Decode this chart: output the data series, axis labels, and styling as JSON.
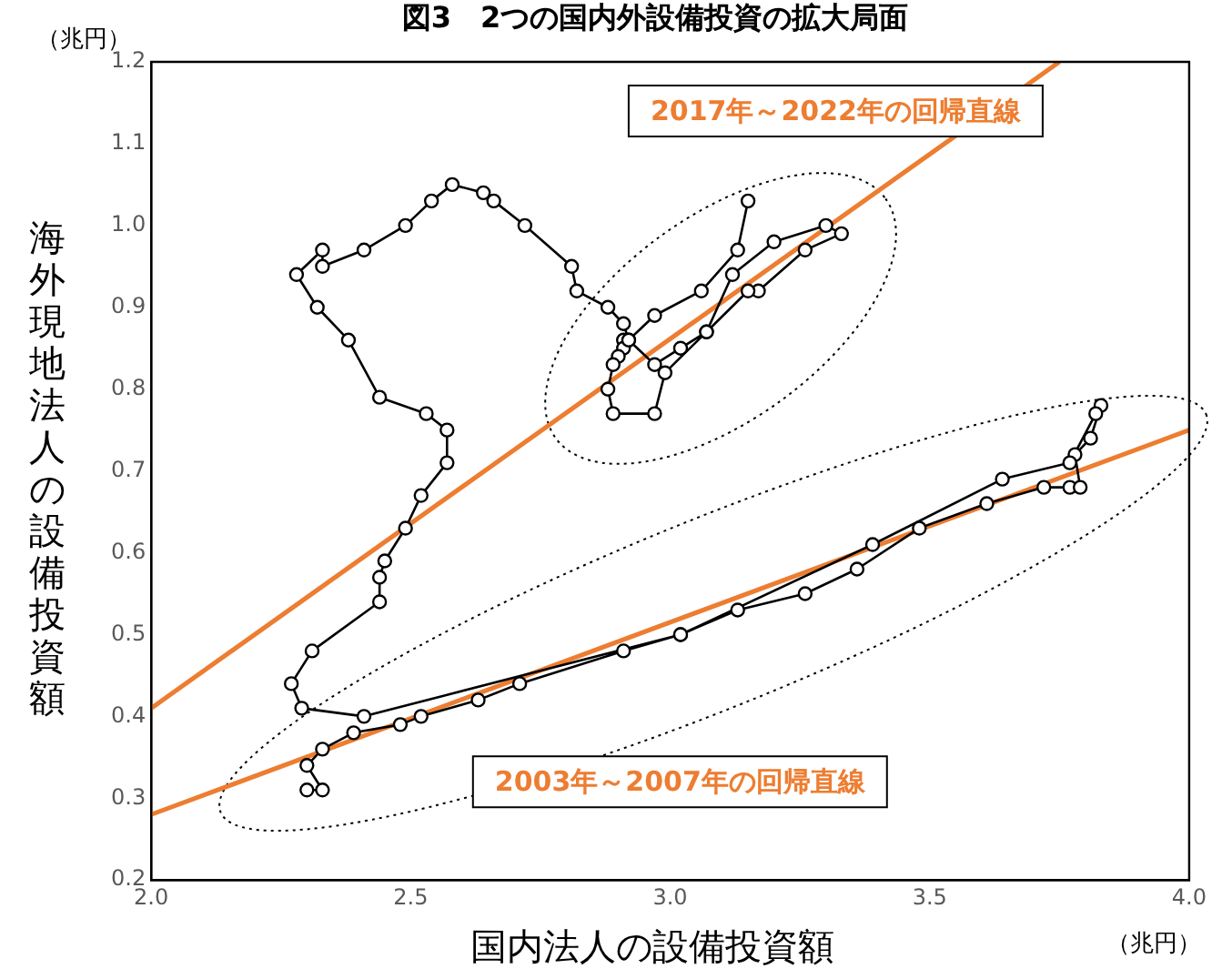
{
  "chart_data": {
    "type": "line",
    "title": "図3　2つの国内外設備投資の拡大局面",
    "xlabel": "国内法人の設備投資額",
    "ylabel": "海外現地法人の設備投資額",
    "annotations": [
      "（兆円）",
      "（兆円）"
    ],
    "xlim": [
      2.0,
      4.0
    ],
    "xticks": [
      {
        "value": 2.0,
        "label": "2.0"
      },
      {
        "value": 2.5,
        "label": "2.5"
      },
      {
        "value": 3.0,
        "label": "3.0"
      },
      {
        "value": 3.5,
        "label": "3.5"
      },
      {
        "value": 4.0,
        "label": "4.0"
      }
    ],
    "ylim": [
      0.2,
      1.2
    ],
    "yticks": [
      {
        "value": 0.2,
        "label": "0.2"
      },
      {
        "value": 0.3,
        "label": "0.3"
      },
      {
        "value": 0.4,
        "label": "0.4"
      },
      {
        "value": 0.5,
        "label": "0.5"
      },
      {
        "value": 0.6,
        "label": "0.6"
      },
      {
        "value": 0.7,
        "label": "0.7"
      },
      {
        "value": 0.8,
        "label": "0.8"
      },
      {
        "value": 0.9,
        "label": "0.9"
      },
      {
        "value": 1.0,
        "label": "1.0"
      },
      {
        "value": 1.1,
        "label": "1.1"
      },
      {
        "value": 1.2,
        "label": "1.2"
      }
    ],
    "grid": false,
    "legend": false,
    "marker": "circle",
    "line_style": "solid",
    "series": [
      {
        "color": "#000000",
        "x": [
          2.3,
          2.33,
          2.3,
          2.33,
          2.39,
          2.48,
          2.52,
          2.63,
          2.71,
          2.91,
          3.02,
          3.13,
          3.26,
          3.36,
          3.48,
          3.61,
          3.72,
          3.77,
          3.79,
          3.78,
          3.81,
          3.83,
          3.82,
          3.77,
          3.64,
          3.39,
          3.02,
          2.41,
          2.29,
          2.27,
          2.31,
          2.44,
          2.44,
          2.45,
          2.49,
          2.52,
          2.57,
          2.57,
          2.53,
          2.44,
          2.38,
          2.32,
          2.28,
          2.33,
          2.33,
          2.41,
          2.49,
          2.54,
          2.58,
          2.64,
          2.66,
          2.72,
          2.81,
          2.82,
          2.88,
          2.91,
          2.92,
          2.91,
          2.91,
          2.9,
          2.89,
          2.88,
          2.89,
          2.97,
          2.99,
          3.07,
          3.12,
          3.2,
          3.3,
          3.33,
          3.26,
          3.17,
          3.15,
          3.07,
          3.02,
          2.97,
          2.92,
          2.97,
          3.06,
          3.13,
          3.15
        ],
        "values": [
          0.31,
          0.31,
          0.34,
          0.36,
          0.38,
          0.39,
          0.4,
          0.42,
          0.44,
          0.48,
          0.5,
          0.53,
          0.55,
          0.58,
          0.63,
          0.66,
          0.68,
          0.68,
          0.68,
          0.72,
          0.74,
          0.78,
          0.77,
          0.71,
          0.69,
          0.61,
          0.5,
          0.4,
          0.41,
          0.44,
          0.48,
          0.54,
          0.57,
          0.59,
          0.63,
          0.67,
          0.71,
          0.75,
          0.77,
          0.79,
          0.86,
          0.9,
          0.94,
          0.97,
          0.95,
          0.97,
          1.0,
          1.03,
          1.05,
          1.04,
          1.03,
          1.0,
          0.95,
          0.92,
          0.9,
          0.88,
          0.86,
          0.86,
          0.85,
          0.84,
          0.83,
          0.8,
          0.77,
          0.77,
          0.82,
          0.87,
          0.94,
          0.98,
          1.0,
          0.99,
          0.97,
          0.92,
          0.92,
          0.87,
          0.85,
          0.83,
          0.86,
          0.89,
          0.92,
          0.97,
          1.03
        ]
      },
      {
        "type": "line",
        "marker": "none",
        "name": "2017年～2022年の回帰直線",
        "color": "#ed7d31",
        "x": [
          2.0,
          3.75
        ],
        "values": [
          0.41,
          1.2
        ]
      },
      {
        "type": "line",
        "marker": "none",
        "name": "2003年～2007年の回帰直線",
        "color": "#ed7d31",
        "x": [
          2.0,
          4.0
        ],
        "values": [
          0.28,
          0.75
        ]
      }
    ]
  }
}
